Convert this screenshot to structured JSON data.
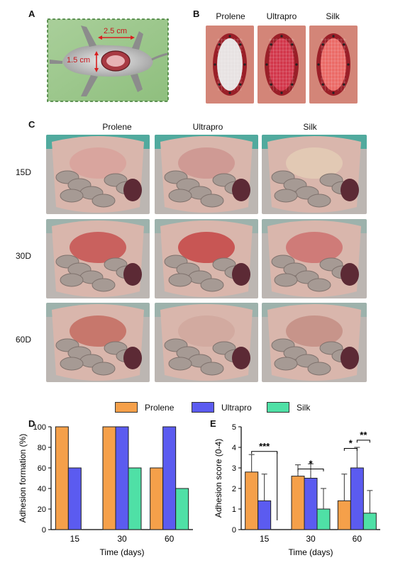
{
  "panels": {
    "A": "A",
    "B": "B",
    "C": "C",
    "D": "D",
    "E": "E"
  },
  "panel_a": {
    "width_label": "2.5 cm",
    "height_label": "1.5 cm"
  },
  "panel_b": {
    "labels": [
      "Prolene",
      "Ultrapro",
      "Silk"
    ]
  },
  "panel_c": {
    "columns": [
      "Prolene",
      "Ultrapro",
      "Silk"
    ],
    "rows": [
      "15D",
      "30D",
      "60D"
    ]
  },
  "legend": {
    "items": [
      {
        "name": "Prolene",
        "color": "#f5a04a"
      },
      {
        "name": "Ultrapro",
        "color": "#5b5bf0"
      },
      {
        "name": "Silk",
        "color": "#4fe0a6"
      }
    ]
  },
  "chart_data": [
    {
      "type": "bar",
      "panel": "D",
      "categories": [
        "15",
        "30",
        "60"
      ],
      "series": [
        {
          "name": "Prolene",
          "values": [
            100,
            100,
            60
          ]
        },
        {
          "name": "Ultrapro",
          "values": [
            60,
            100,
            100
          ]
        },
        {
          "name": "Silk",
          "values": [
            0,
            60,
            40
          ]
        }
      ],
      "xlabel": "Time (days)",
      "ylabel": "Adhesion formation (%)",
      "ylim": [
        0,
        100
      ],
      "yticks": [
        "0",
        "20",
        "40",
        "60",
        "80",
        "100"
      ]
    },
    {
      "type": "bar",
      "panel": "E",
      "categories": [
        "15",
        "30",
        "60"
      ],
      "series": [
        {
          "name": "Prolene",
          "values": [
            2.8,
            2.6,
            1.4
          ],
          "errors": [
            0.85,
            0.55,
            1.3
          ]
        },
        {
          "name": "Ultrapro",
          "values": [
            1.4,
            2.5,
            3.0
          ],
          "errors": [
            1.3,
            0.7,
            1.0
          ]
        },
        {
          "name": "Silk",
          "values": [
            0,
            1.0,
            0.8
          ],
          "errors": [
            0,
            1.0,
            1.1
          ]
        }
      ],
      "xlabel": "Time (days)",
      "ylabel": "Adhesion score (0-4)",
      "ylim": [
        0,
        5
      ],
      "yticks": [
        "0",
        "1",
        "2",
        "3",
        "4",
        "5"
      ],
      "significance": [
        {
          "group": "15",
          "label": "***",
          "from": "Prolene",
          "to": "Silk"
        },
        {
          "group": "30",
          "label": "*",
          "from": "Prolene",
          "to": "Silk"
        },
        {
          "group": "60",
          "label": "*",
          "from": "Prolene",
          "to": "Ultrapro"
        },
        {
          "group": "60",
          "label": "**",
          "from": "Ultrapro",
          "to": "Silk"
        }
      ]
    }
  ]
}
